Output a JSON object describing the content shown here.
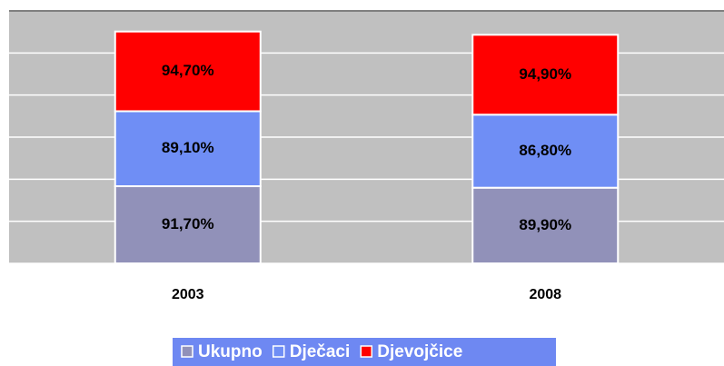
{
  "chart_data": {
    "type": "stacked_bar",
    "categories": [
      "2003",
      "2008"
    ],
    "series": [
      {
        "name": "Ukupno",
        "color": "#9191b9",
        "values": [
          91.7,
          89.9
        ],
        "value_labels": [
          "91,70%",
          "89,90%"
        ]
      },
      {
        "name": "Dječaci",
        "color": "#6f8ef5",
        "values": [
          89.1,
          86.8
        ],
        "value_labels": [
          "89,10%",
          "86,80%"
        ]
      },
      {
        "name": "Djevojčice",
        "color": "#ff0000",
        "values": [
          94.7,
          94.9
        ],
        "value_labels": [
          "94,70%",
          "94,90%"
        ]
      }
    ],
    "ylim": [
      0,
      300
    ],
    "yticks": [
      0,
      50,
      100,
      150,
      200,
      250,
      300
    ],
    "grid": true,
    "legend": "bottom"
  }
}
